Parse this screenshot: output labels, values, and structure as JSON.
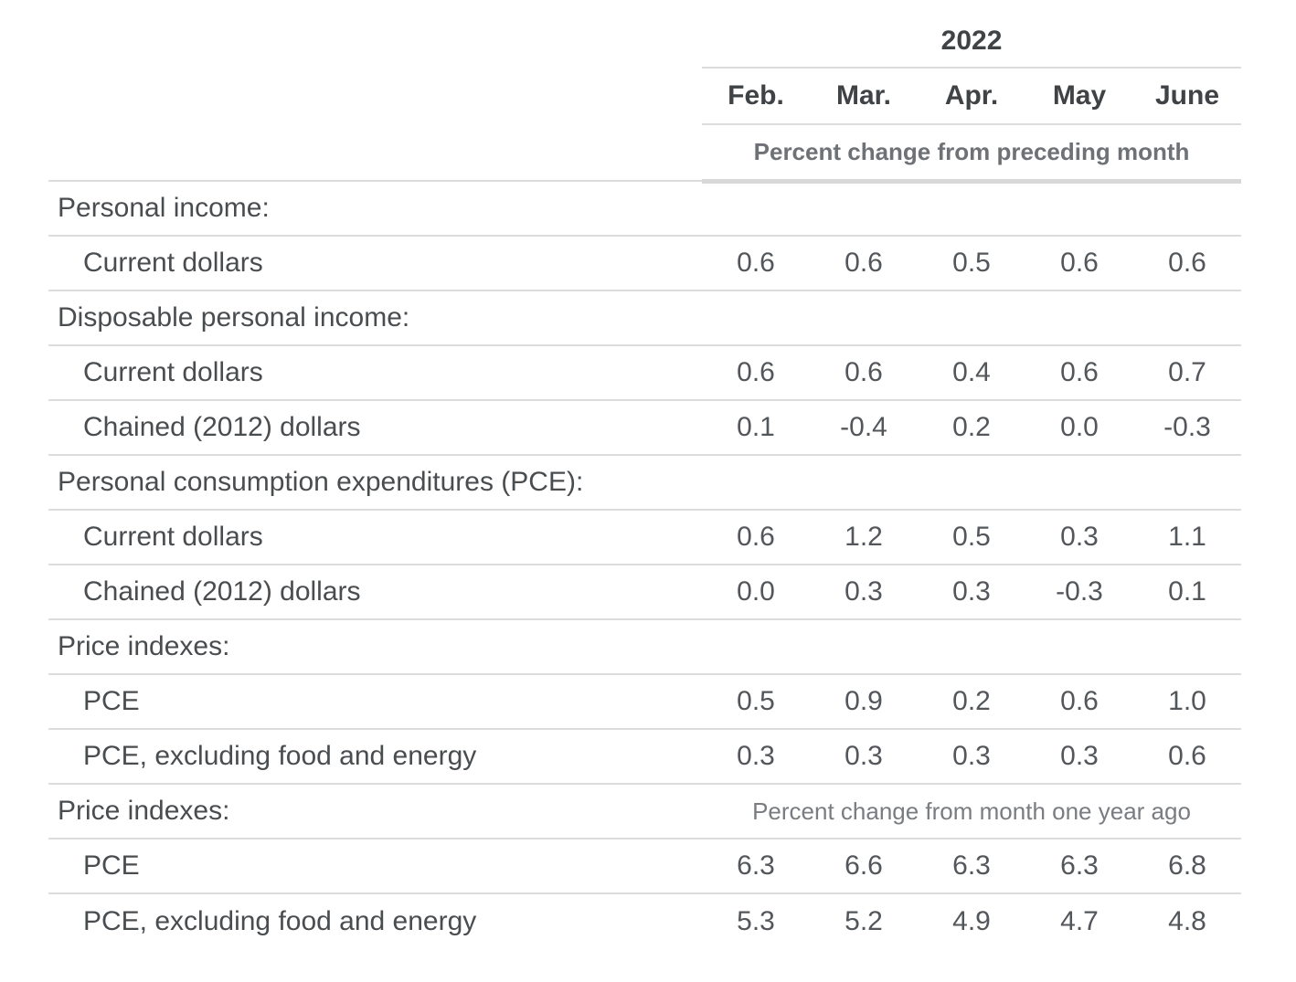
{
  "table": {
    "year": "2022",
    "months": [
      "Feb.",
      "Mar.",
      "Apr.",
      "May",
      "June"
    ],
    "subheader_top": "Percent change from preceding month",
    "rows": [
      {
        "type": "section",
        "label": "Personal income:"
      },
      {
        "type": "data",
        "label": "Current dollars",
        "values": [
          "0.6",
          "0.6",
          "0.5",
          "0.6",
          "0.6"
        ]
      },
      {
        "type": "section",
        "label": "Disposable personal income:"
      },
      {
        "type": "data",
        "label": "Current dollars",
        "values": [
          "0.6",
          "0.6",
          "0.4",
          "0.6",
          "0.7"
        ]
      },
      {
        "type": "data",
        "label": "Chained (2012) dollars",
        "values": [
          "0.1",
          "-0.4",
          "0.2",
          "0.0",
          "-0.3"
        ]
      },
      {
        "type": "section",
        "label": "Personal consumption expenditures (PCE):"
      },
      {
        "type": "data",
        "label": "Current dollars",
        "values": [
          "0.6",
          "1.2",
          "0.5",
          "0.3",
          "1.1"
        ]
      },
      {
        "type": "data",
        "label": "Chained (2012) dollars",
        "values": [
          "0.0",
          "0.3",
          "0.3",
          "-0.3",
          "0.1"
        ]
      },
      {
        "type": "section",
        "label": "Price indexes:"
      },
      {
        "type": "data",
        "label": "PCE",
        "values": [
          "0.5",
          "0.9",
          "0.2",
          "0.6",
          "1.0"
        ]
      },
      {
        "type": "data",
        "label": "PCE, excluding food and energy",
        "values": [
          "0.3",
          "0.3",
          "0.3",
          "0.3",
          "0.6"
        ]
      },
      {
        "type": "section-note",
        "label": "Price indexes:",
        "note": "Percent change from month one year ago"
      },
      {
        "type": "data",
        "label": "PCE",
        "values": [
          "6.3",
          "6.6",
          "6.3",
          "6.3",
          "6.8"
        ]
      },
      {
        "type": "data",
        "label": "PCE, excluding food and energy",
        "values": [
          "5.3",
          "5.2",
          "4.9",
          "4.7",
          "4.8"
        ]
      }
    ],
    "colors": {
      "header_text": "#404346",
      "label_text": "#4a4d50",
      "value_text": "#53565a",
      "subheader_text": "#6e7175",
      "note_text": "#797c80",
      "rule": "#dcdcdc",
      "rule_thick": "#d8d8d8",
      "background": "#ffffff"
    }
  }
}
